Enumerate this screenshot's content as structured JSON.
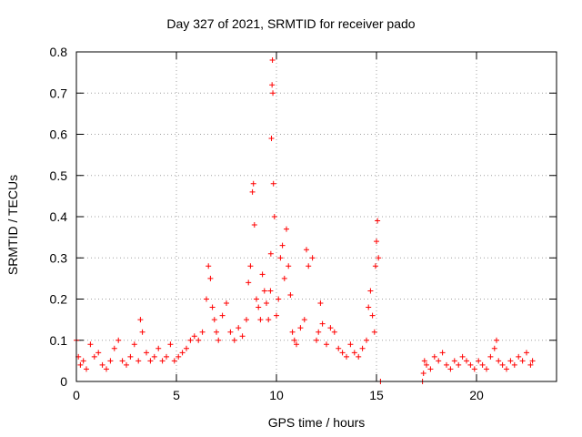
{
  "chart_data": {
    "type": "scatter",
    "title": "Day 327 of 2021, SRMTID for receiver pado",
    "xlabel": "GPS time / hours",
    "ylabel": "SRMTID / TECUs",
    "xlim": [
      0,
      24
    ],
    "ylim": [
      0,
      0.8
    ],
    "xticks": [
      "0",
      "5",
      "10",
      "15",
      "20"
    ],
    "yticks": [
      "0",
      "0.1",
      "0.2",
      "0.3",
      "0.4",
      "0.5",
      "0.6",
      "0.7",
      "0.8"
    ],
    "grid": true,
    "marker": "+",
    "color": "#ff0000",
    "series": [
      {
        "name": "SRMTID",
        "x": [
          0.0,
          0.1,
          0.2,
          0.35,
          0.5,
          0.7,
          0.9,
          1.1,
          1.3,
          1.5,
          1.7,
          1.9,
          2.1,
          2.3,
          2.5,
          2.7,
          2.9,
          3.1,
          3.2,
          3.3,
          3.5,
          3.7,
          3.9,
          4.1,
          4.3,
          4.5,
          4.7,
          4.9,
          5.1,
          5.3,
          5.5,
          5.7,
          5.9,
          6.1,
          6.3,
          6.5,
          6.6,
          6.7,
          6.8,
          6.9,
          7.0,
          7.1,
          7.3,
          7.5,
          7.7,
          7.9,
          8.1,
          8.3,
          8.5,
          8.6,
          8.7,
          8.8,
          8.85,
          8.9,
          9.0,
          9.1,
          9.2,
          9.3,
          9.4,
          9.5,
          9.6,
          9.7,
          9.72,
          9.75,
          9.78,
          9.8,
          9.82,
          9.85,
          9.9,
          10.0,
          10.1,
          10.2,
          10.3,
          10.4,
          10.5,
          10.6,
          10.7,
          10.8,
          10.9,
          11.0,
          11.2,
          11.4,
          11.5,
          11.6,
          11.8,
          12.0,
          12.1,
          12.2,
          12.3,
          12.5,
          12.7,
          12.9,
          13.1,
          13.3,
          13.5,
          13.7,
          13.9,
          14.1,
          14.3,
          14.5,
          14.6,
          14.7,
          14.8,
          14.9,
          14.95,
          15.0,
          15.05,
          15.1,
          15.2,
          17.3,
          17.35,
          17.4,
          17.5,
          17.7,
          17.9,
          18.1,
          18.3,
          18.5,
          18.7,
          18.9,
          19.1,
          19.3,
          19.5,
          19.7,
          19.9,
          20.1,
          20.3,
          20.5,
          20.7,
          20.9,
          21.0,
          21.1,
          21.3,
          21.5,
          21.7,
          21.9,
          22.1,
          22.3,
          22.5,
          22.7,
          22.8
        ],
        "y": [
          0.1,
          0.06,
          0.04,
          0.05,
          0.03,
          0.09,
          0.06,
          0.07,
          0.04,
          0.03,
          0.05,
          0.08,
          0.1,
          0.05,
          0.04,
          0.06,
          0.09,
          0.05,
          0.15,
          0.12,
          0.07,
          0.05,
          0.06,
          0.08,
          0.05,
          0.06,
          0.09,
          0.05,
          0.06,
          0.07,
          0.08,
          0.1,
          0.11,
          0.1,
          0.12,
          0.2,
          0.28,
          0.25,
          0.18,
          0.15,
          0.12,
          0.1,
          0.16,
          0.19,
          0.12,
          0.1,
          0.13,
          0.11,
          0.15,
          0.24,
          0.28,
          0.46,
          0.48,
          0.38,
          0.2,
          0.18,
          0.15,
          0.26,
          0.22,
          0.19,
          0.15,
          0.22,
          0.31,
          0.59,
          0.72,
          0.78,
          0.7,
          0.48,
          0.4,
          0.16,
          0.2,
          0.3,
          0.33,
          0.25,
          0.37,
          0.28,
          0.21,
          0.12,
          0.1,
          0.09,
          0.13,
          0.15,
          0.32,
          0.28,
          0.3,
          0.1,
          0.12,
          0.19,
          0.14,
          0.09,
          0.13,
          0.12,
          0.08,
          0.07,
          0.06,
          0.09,
          0.07,
          0.06,
          0.08,
          0.1,
          0.18,
          0.22,
          0.16,
          0.12,
          0.28,
          0.34,
          0.39,
          0.3,
          0.0,
          0.0,
          0.02,
          0.05,
          0.04,
          0.03,
          0.06,
          0.05,
          0.07,
          0.04,
          0.03,
          0.05,
          0.04,
          0.06,
          0.05,
          0.04,
          0.03,
          0.05,
          0.04,
          0.03,
          0.06,
          0.08,
          0.1,
          0.05,
          0.04,
          0.03,
          0.05,
          0.04,
          0.06,
          0.05,
          0.07,
          0.04,
          0.05
        ]
      }
    ]
  }
}
